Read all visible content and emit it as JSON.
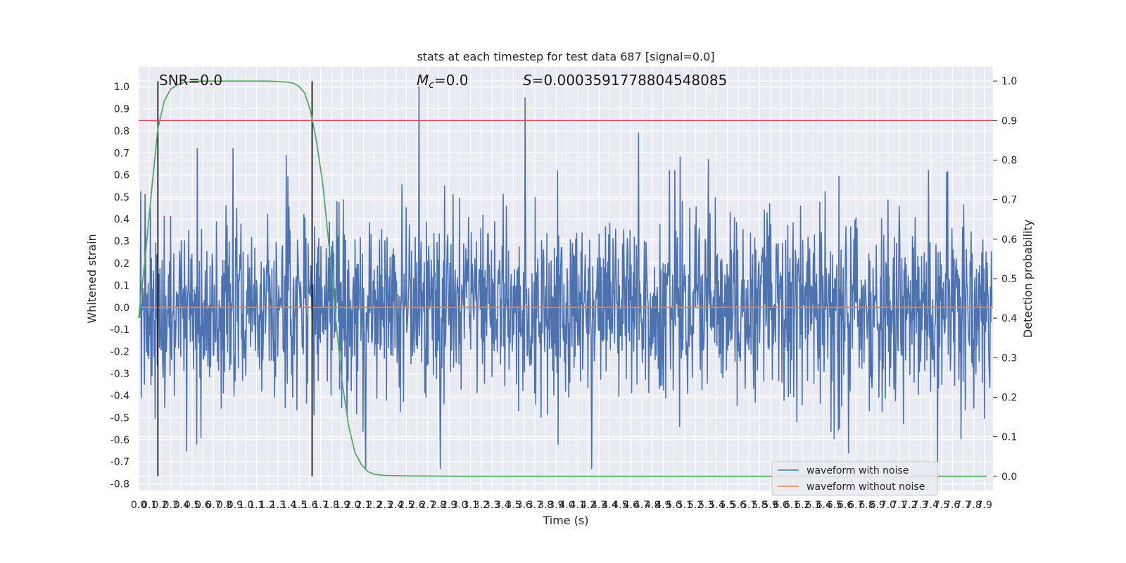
{
  "chart_data": {
    "type": "line",
    "title": "stats at each timestep for test data 687 [signal=0.0]",
    "xlabel": "Time (s)",
    "ylabel": "Whitened strain",
    "y2label": "Detection probability",
    "xlim": [
      0.0,
      7.98
    ],
    "ylim": [
      -0.83,
      1.09
    ],
    "y2lim": [
      -0.036,
      1.036
    ],
    "x_ticks": [
      "0.0",
      "0.1",
      "0.2",
      "0.3",
      "0.4",
      "0.5",
      "0.6",
      "0.7",
      "0.8",
      "0.9",
      "1.0",
      "1.1",
      "1.2",
      "1.3",
      "1.4",
      "1.5",
      "1.6",
      "1.7",
      "1.8",
      "1.9",
      "2.0",
      "2.1",
      "2.2",
      "2.3",
      "2.4",
      "2.5",
      "2.6",
      "2.7",
      "2.8",
      "2.9",
      "3.0",
      "3.1",
      "3.2",
      "3.3",
      "3.4",
      "3.5",
      "3.6",
      "3.7",
      "3.8",
      "3.9",
      "4.0",
      "4.1",
      "4.2",
      "4.3",
      "4.4",
      "4.5",
      "4.6",
      "4.7",
      "4.8",
      "4.9",
      "5.0",
      "5.1",
      "5.2",
      "5.3",
      "5.4",
      "5.5",
      "5.6",
      "5.7",
      "5.8",
      "5.9",
      "6.0",
      "6.1",
      "6.2",
      "6.3",
      "6.4",
      "6.5",
      "6.6",
      "6.7",
      "6.8",
      "6.9",
      "7.0",
      "7.1",
      "7.2",
      "7.3",
      "7.4",
      "7.5",
      "7.6",
      "7.7",
      "7.8",
      "7.9"
    ],
    "y_ticks": [
      "-0.8",
      "-0.7",
      "-0.6",
      "-0.5",
      "-0.4",
      "-0.3",
      "-0.2",
      "-0.1",
      "0.0",
      "0.1",
      "0.2",
      "0.3",
      "0.4",
      "0.5",
      "0.6",
      "0.7",
      "0.8",
      "0.9",
      "1.0"
    ],
    "y2_ticks": [
      "0.0",
      "0.1",
      "0.2",
      "0.3",
      "0.4",
      "0.5",
      "0.6",
      "0.7",
      "0.8",
      "0.9",
      "1.0"
    ],
    "annotations": {
      "snr": "SNR=0.0",
      "mc_symbol": "M",
      "mc_sub": "c",
      "mc_value": "=0.0",
      "s_symbol": "S",
      "s_value": "=0.0003591778804548085"
    },
    "vertical_lines_x": [
      0.18,
      1.62
    ],
    "threshold_y2": 0.9,
    "noise_series": {
      "name": "waveform with noise",
      "color": "#4c72b0",
      "n_samples": 1600,
      "typical_amplitude": 0.3,
      "peaks": [
        {
          "x": 2.62,
          "y": 1.0
        },
        {
          "x": 3.61,
          "y": 0.95
        },
        {
          "x": 4.67,
          "y": 0.79
        },
        {
          "x": 0.55,
          "y": 0.72
        },
        {
          "x": 0.88,
          "y": 0.72
        },
        {
          "x": 1.38,
          "y": 0.69
        },
        {
          "x": 5.06,
          "y": 0.68
        },
        {
          "x": 5.32,
          "y": 0.67
        },
        {
          "x": 2.12,
          "y": -0.73
        },
        {
          "x": 2.82,
          "y": -0.73
        },
        {
          "x": 4.23,
          "y": -0.73
        },
        {
          "x": 0.45,
          "y": -0.65
        },
        {
          "x": 6.63,
          "y": -0.66
        },
        {
          "x": 7.46,
          "y": -0.7
        }
      ]
    },
    "clean_series": {
      "name": "waveform without noise",
      "color": "#dd8452",
      "value": 0.0
    },
    "probability_series": {
      "name": "",
      "color": "#55a868",
      "x": [
        0.0,
        0.06,
        0.12,
        0.18,
        0.24,
        0.3,
        0.36,
        0.42,
        0.5,
        0.6,
        0.8,
        1.0,
        1.2,
        1.3,
        1.4,
        1.45,
        1.5,
        1.55,
        1.6,
        1.66,
        1.72,
        1.78,
        1.84,
        1.9,
        1.96,
        2.02,
        2.08,
        2.14,
        2.2,
        2.3,
        2.5,
        3.0,
        4.0,
        5.0,
        6.0,
        7.0,
        7.92
      ],
      "y": [
        0.4,
        0.55,
        0.72,
        0.88,
        0.95,
        0.98,
        0.99,
        0.996,
        0.999,
        1.0,
        1.0,
        1.0,
        1.0,
        0.999,
        0.997,
        0.994,
        0.986,
        0.97,
        0.93,
        0.85,
        0.74,
        0.58,
        0.4,
        0.24,
        0.13,
        0.06,
        0.03,
        0.012,
        0.005,
        0.002,
        0.001,
        0.0,
        0.0,
        0.0,
        0.0,
        0.0,
        0.0
      ]
    },
    "threshold_color": "#c44e52",
    "legend": {
      "placement": "lower-right",
      "entries": [
        {
          "label": "waveform with noise",
          "color": "#4c72b0"
        },
        {
          "label": "waveform without noise",
          "color": "#dd8452"
        }
      ]
    },
    "grid": true
  }
}
